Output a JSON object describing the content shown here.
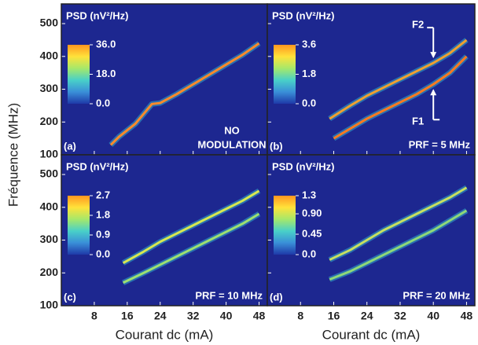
{
  "chart_data": [
    {
      "type": "line",
      "ylabel": "Fréquence (MHz)",
      "panel_label": "(a)",
      "annotation": [
        "NO",
        "MODULATION"
      ],
      "background": "#1d2790",
      "xlim": [
        0,
        50
      ],
      "ylim": [
        100,
        560
      ],
      "yticks": [
        100,
        200,
        300,
        400,
        500
      ],
      "colorbar": {
        "title": "PSD (nV²/Hz)",
        "lim": [
          0,
          36
        ],
        "ticks": [
          {
            "value": 36,
            "label": "36.0"
          },
          {
            "value": 18,
            "label": "18.0"
          },
          {
            "value": 0,
            "label": "0.0"
          }
        ],
        "colors": [
          "#1e3aa8",
          "#3a8fd8",
          "#49d0c8",
          "#a6e86a",
          "#ffe23a",
          "#ff9620"
        ]
      },
      "series": [
        {
          "color": "#ff8a2a",
          "x": [
            12,
            14,
            16,
            18,
            20,
            22,
            24,
            28,
            32,
            36,
            40,
            44,
            48
          ],
          "values": [
            130,
            155,
            175,
            195,
            225,
            255,
            258,
            285,
            315,
            345,
            375,
            405,
            440
          ]
        }
      ]
    },
    {
      "type": "line",
      "panel_label": "(b)",
      "annotation": [
        "PRF = 5 MHz"
      ],
      "background": "#1d2790",
      "xlim": [
        0,
        50
      ],
      "ylim": [
        100,
        560
      ],
      "colorbar": {
        "title": "PSD (nV²/Hz)",
        "lim": [
          0,
          3.6
        ],
        "ticks": [
          {
            "value": 3.6,
            "label": "3.6"
          },
          1.8,
          {
            "value": 0,
            "label": "0.0"
          }
        ],
        "colors": [
          "#1e3aa8",
          "#3a8fd8",
          "#49d0c8",
          "#a6e86a",
          "#ffe23a",
          "#ff9620"
        ]
      },
      "series": [
        {
          "name": "F2",
          "color": "#f0a030",
          "x": [
            15,
            20,
            24,
            28,
            32,
            36,
            40,
            44,
            48
          ],
          "values": [
            210,
            250,
            280,
            305,
            330,
            355,
            380,
            410,
            450
          ]
        },
        {
          "name": "F1",
          "color": "#ff7a20",
          "x": [
            16,
            20,
            24,
            28,
            32,
            36,
            40,
            44,
            48
          ],
          "values": [
            150,
            180,
            210,
            235,
            260,
            285,
            315,
            350,
            400
          ]
        }
      ]
    },
    {
      "type": "line",
      "panel_label": "(c)",
      "annotation": [
        "PRF = 10 MHz"
      ],
      "xlabel": "Courant dc (mA)",
      "background": "#1d2790",
      "xlim": [
        0,
        50
      ],
      "ylim": [
        100,
        560
      ],
      "yticks": [
        100,
        200,
        300,
        400,
        500
      ],
      "xticks": [
        8,
        16,
        24,
        32,
        40,
        48
      ],
      "colorbar": {
        "title": "PSD (nV²/Hz)",
        "lim": [
          0,
          2.7
        ],
        "ticks": [
          2.7,
          1.8,
          0.9,
          {
            "value": 0,
            "label": "0.0"
          }
        ],
        "colors": [
          "#1e3aa8",
          "#3a8fd8",
          "#49d0c8",
          "#a6e86a",
          "#ffe23a",
          "#ff9620"
        ]
      },
      "series": [
        {
          "color": "#d8e850",
          "x": [
            15,
            20,
            24,
            28,
            32,
            36,
            40,
            44,
            48
          ],
          "values": [
            230,
            265,
            295,
            320,
            345,
            370,
            395,
            420,
            450
          ]
        },
        {
          "color": "#9ee070",
          "x": [
            15,
            20,
            24,
            28,
            32,
            36,
            40,
            44,
            48
          ],
          "values": [
            170,
            200,
            225,
            250,
            275,
            300,
            325,
            350,
            380
          ]
        }
      ]
    },
    {
      "type": "line",
      "panel_label": "(d)",
      "annotation": [
        "PRF = 20 MHz"
      ],
      "xlabel": "Courant dc (mA)",
      "background": "#1d2790",
      "xlim": [
        0,
        50
      ],
      "ylim": [
        100,
        560
      ],
      "xticks": [
        8,
        16,
        24,
        32,
        40,
        48
      ],
      "colorbar": {
        "title": "PSD (nV²/Hz)",
        "lim": [
          0,
          1.3
        ],
        "ticks": [
          1.3,
          {
            "value": 0.9,
            "label": "0.90"
          },
          0.45,
          {
            "value": 0,
            "label": "0.0"
          }
        ],
        "colors": [
          "#1e3aa8",
          "#3a8fd8",
          "#49d0c8",
          "#a6e86a",
          "#ffe23a",
          "#ff9620"
        ]
      },
      "series": [
        {
          "color": "#c8e060",
          "x": [
            15,
            20,
            24,
            28,
            32,
            36,
            40,
            44,
            48
          ],
          "values": [
            240,
            270,
            300,
            330,
            355,
            380,
            405,
            430,
            460
          ]
        },
        {
          "color": "#8fd878",
          "x": [
            15,
            20,
            24,
            28,
            32,
            36,
            40,
            44,
            48
          ],
          "values": [
            180,
            205,
            230,
            255,
            280,
            305,
            330,
            360,
            390
          ]
        }
      ]
    }
  ]
}
